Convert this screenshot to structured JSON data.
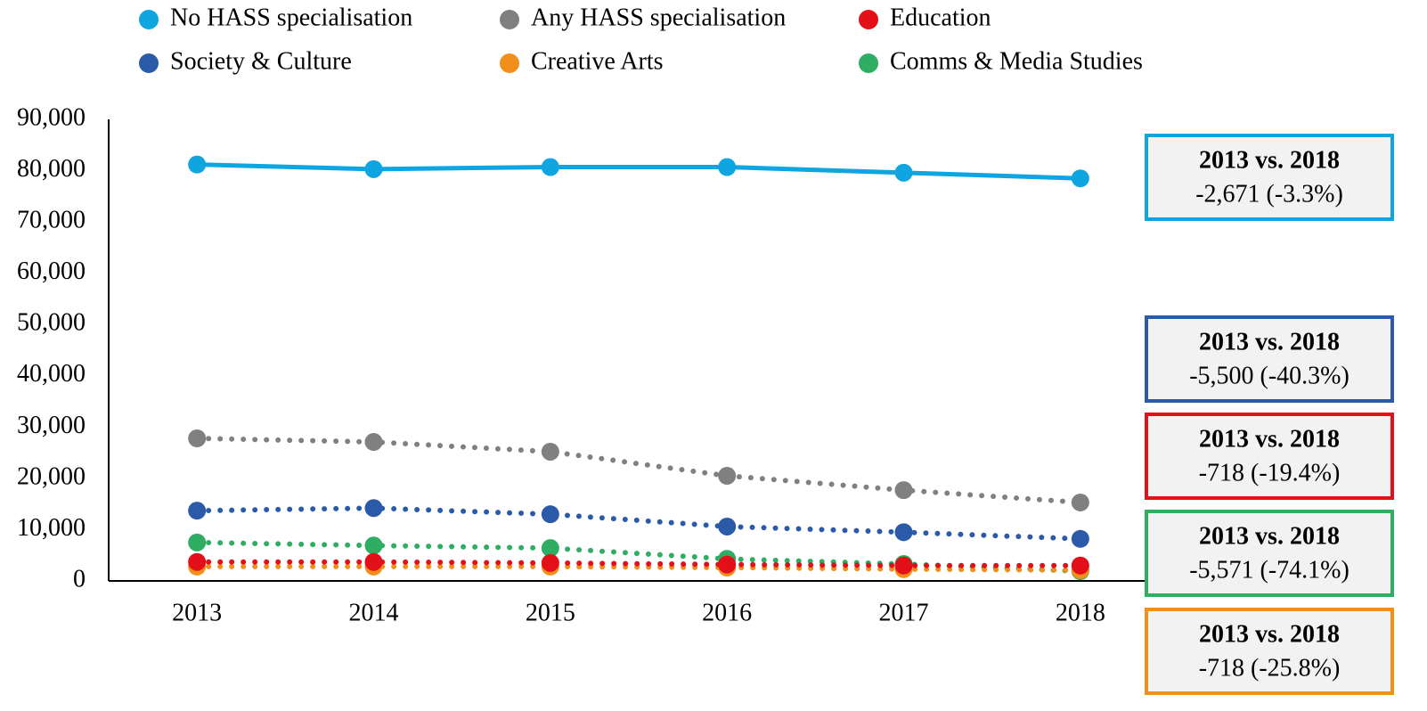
{
  "chart_data": {
    "type": "line",
    "categories": [
      "2013",
      "2014",
      "2015",
      "2016",
      "2017",
      "2018"
    ],
    "series": [
      {
        "name": "No HASS specialisation",
        "color": "#0fa5e0",
        "dash": "solid",
        "values": [
          81200,
          80300,
          80700,
          80700,
          79600,
          78500
        ]
      },
      {
        "name": "Any HASS specialisation",
        "color": "#808080",
        "dash": "dotted",
        "values": [
          27800,
          27100,
          25200,
          20500,
          17700,
          15300
        ]
      },
      {
        "name": "Education",
        "color": "#e3101a",
        "dash": "dotted",
        "values": [
          3700,
          3700,
          3500,
          3200,
          3000,
          3000
        ]
      },
      {
        "name": "Society & Culture",
        "color": "#2b5aa8",
        "dash": "dotted",
        "values": [
          13700,
          14200,
          13000,
          10600,
          9500,
          8200
        ]
      },
      {
        "name": "Creative Arts",
        "color": "#f0901b",
        "dash": "dotted",
        "values": [
          2800,
          2800,
          2800,
          2600,
          2300,
          2100
        ]
      },
      {
        "name": "Comms & Media Studies",
        "color": "#2fad63",
        "dash": "dotted",
        "values": [
          7500,
          6900,
          6400,
          4300,
          3300,
          1900
        ]
      }
    ],
    "ylim": [
      0,
      90000
    ],
    "yticks": [
      0,
      {
        "value": 10000,
        "label": "10,000"
      },
      {
        "value": 20000,
        "label": "20,000"
      },
      {
        "value": 30000,
        "label": "30,000"
      },
      {
        "value": 40000,
        "label": "40,000"
      },
      {
        "value": 50000,
        "label": "50,000"
      },
      {
        "value": 60000,
        "label": "60,000"
      },
      {
        "value": 70000,
        "label": "70,000"
      },
      {
        "value": 80000,
        "label": "80,000"
      },
      {
        "value": 90000,
        "label": "90,000"
      }
    ],
    "legend": "top",
    "annotations": [
      {
        "title": "2013 vs. 2018",
        "text": "-2,671 (-3.3%)",
        "color": "#0fa5e0"
      },
      {
        "title": "2013 vs. 2018",
        "text": "-5,500 (-40.3%)",
        "color": "#2b5aa8"
      },
      {
        "title": "2013 vs. 2018",
        "text": "-718 (-19.4%)",
        "color": "#e3101a"
      },
      {
        "title": "2013 vs. 2018",
        "text": "-5,571 (-74.1%)",
        "color": "#2fad63"
      },
      {
        "title": "2013 vs. 2018",
        "text": "-718 (-25.8%)",
        "color": "#f0901b"
      }
    ]
  }
}
